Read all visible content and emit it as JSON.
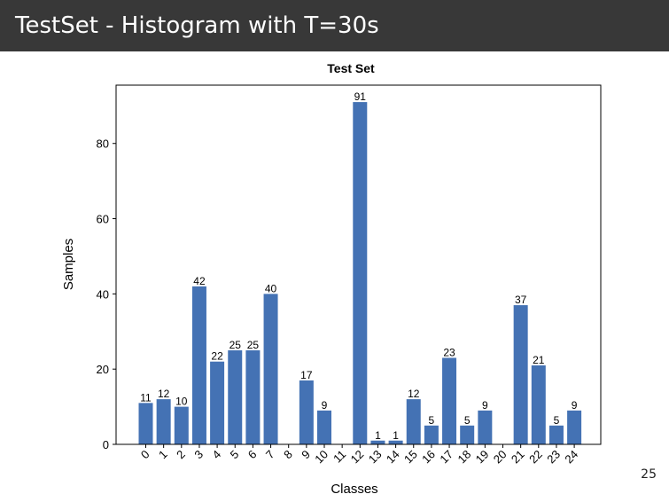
{
  "slide": {
    "title": "TestSet - Histogram with T=30s",
    "page_number": "25"
  },
  "chart_data": {
    "type": "bar",
    "title": "Test Set",
    "xlabel": "Classes",
    "ylabel": "Samples",
    "categories": [
      "0",
      "1",
      "2",
      "3",
      "4",
      "5",
      "6",
      "7",
      "8",
      "9",
      "10",
      "11",
      "12",
      "13",
      "14",
      "15",
      "16",
      "17",
      "18",
      "19",
      "20",
      "21",
      "22",
      "23",
      "24"
    ],
    "values": [
      11,
      12,
      10,
      42,
      22,
      25,
      25,
      40,
      0,
      17,
      9,
      0,
      91,
      1,
      1,
      12,
      5,
      23,
      5,
      9,
      0,
      37,
      21,
      5,
      9
    ],
    "data_labels": [
      "11",
      "12",
      "10",
      "42",
      "22",
      "25",
      "25",
      "40",
      "",
      "17",
      "9",
      "",
      "91",
      "1",
      "1",
      "12",
      "5",
      "23",
      "5",
      "9",
      "",
      "37",
      "21",
      "5",
      "9"
    ],
    "ylim": [
      0,
      95.5
    ],
    "yticks": [
      0,
      20,
      40,
      60,
      80
    ],
    "bar_color": "#4472b4",
    "grid": false,
    "legend": "none"
  }
}
